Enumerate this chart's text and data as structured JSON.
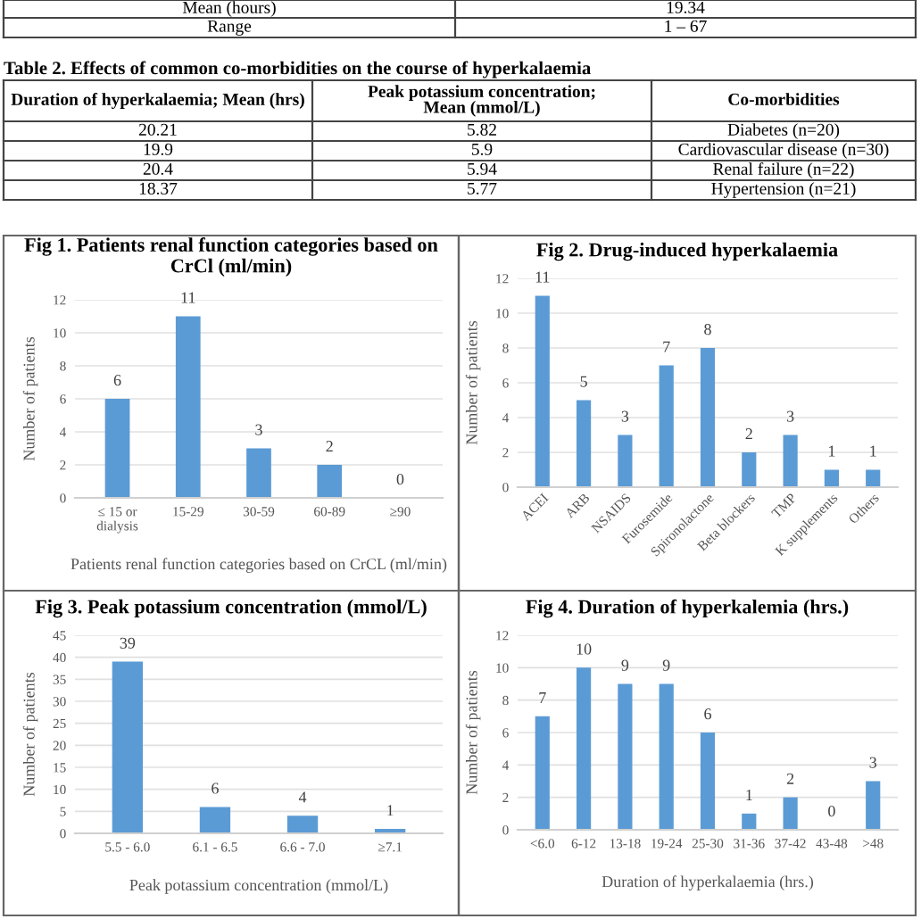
{
  "chart_data": [
    {
      "type": "other",
      "annotations": [
        "Mean (hours)",
        "19.34",
        "Range",
        "1 – 67"
      ]
    },
    {
      "type": "other",
      "title": "Table 2. Effects of common co-morbidities on the course of hyperkalaemia",
      "annotations": [
        "Duration of hyperkalaemia; Mean (hrs)",
        "Peak potassium concentration;\nMean (mmol/L)",
        "Co-morbidities",
        "20.21",
        "5.82",
        "Diabetes (n=20)",
        "19.9",
        "5.9",
        "Cardiovascular disease (n=30)",
        "20.4",
        "5.94",
        "Renal failure (n=22)",
        "18.37",
        "5.77",
        "Hypertension (n=21)"
      ]
    },
    {
      "type": "bar",
      "title": "Fig 1. Patients renal function categories based on CrCl (ml/min)",
      "xlabel": "Patients renal function categories based on CrCL (ml/min)",
      "ylabel": "Number of patients",
      "categories": [
        "≤ 15 or\ndialysis",
        "15-29",
        "30-59",
        "60-89",
        "≥90"
      ],
      "values": [
        6,
        11,
        3,
        2,
        0
      ],
      "color": "#5b9bd5",
      "ylim": [
        0,
        12
      ],
      "yticks": [
        0,
        2,
        4,
        6,
        8,
        10,
        12
      ],
      "grid": "y",
      "data_labels": true
    },
    {
      "type": "bar",
      "title": "Fig 2. Drug-induced hyperkalaemia",
      "ylabel": "Number of patients",
      "categories": [
        "ACEI",
        "ARB",
        "NSAIDS",
        "Furosemide",
        "Spironolactone",
        "Beta blockers",
        "TMP",
        "K supplements",
        "Others"
      ],
      "values": [
        11,
        5,
        3,
        7,
        8,
        2,
        3,
        1,
        1
      ],
      "color": "#5b9bd5",
      "ylim": [
        0,
        12
      ],
      "yticks": [
        0,
        2,
        4,
        6,
        8,
        10,
        12
      ],
      "grid": "y",
      "data_labels": true
    },
    {
      "type": "bar",
      "title": "Fig 3. Peak potassium concentration (mmol/L)",
      "xlabel": "Peak potassium concentration (mmol/L)",
      "ylabel": "Number of patients",
      "categories": [
        "5.5 - 6.0",
        "6.1 - 6.5",
        "6.6 - 7.0",
        "≥7.1"
      ],
      "values": [
        39,
        6,
        4,
        1
      ],
      "color": "#5b9bd5",
      "ylim": [
        0,
        45
      ],
      "yticks": [
        0,
        5,
        10,
        15,
        20,
        25,
        30,
        35,
        40,
        45
      ],
      "grid": "y",
      "data_labels": true
    },
    {
      "type": "bar",
      "title": "Fig 4. Duration of hyperkalemia (hrs.)",
      "xlabel": "Duration of hyperkalaemia (hrs.)",
      "ylabel": "Number of patients",
      "categories": [
        "<6.0",
        "6-12",
        "13-18",
        "19-24",
        "25-30",
        "31-36",
        "37-42",
        "43-48",
        ">48"
      ],
      "values": [
        7,
        10,
        9,
        9,
        6,
        1,
        2,
        0,
        3
      ],
      "color": "#5b9bd5",
      "ylim": [
        0,
        12
      ],
      "yticks": [
        0,
        2,
        4,
        6,
        8,
        10,
        12
      ],
      "grid": "y",
      "data_labels": true
    }
  ]
}
